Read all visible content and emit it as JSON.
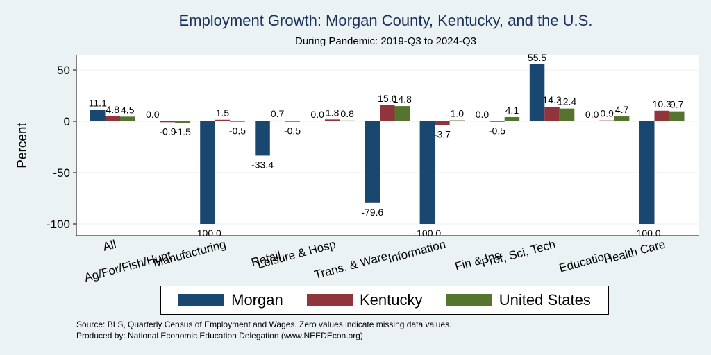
{
  "chart_data": {
    "type": "bar",
    "title": "Employment Growth: Morgan County, Kentucky, and the U.S.",
    "subtitle": "During Pandemic: 2019-Q3 to 2024-Q3",
    "ylabel": "Percent",
    "ylim": [
      -105,
      67
    ],
    "yticks": [
      50,
      0,
      -50,
      -100
    ],
    "grid": true,
    "categories": [
      "All",
      "Ag/For/Fish/Hunt",
      "Manufacturing",
      "Retail",
      "Leisure & Hosp",
      "Trans. & Ware.",
      "Information",
      "Fin & Ins",
      "Prof, Sci, Tech",
      "Education",
      "Health Care"
    ],
    "series": [
      {
        "name": "Morgan",
        "color": "#1a476f",
        "values": [
          11.1,
          0.0,
          -100.0,
          -33.4,
          0.0,
          -79.6,
          -100.0,
          0.0,
          55.5,
          0.0,
          -100.0
        ]
      },
      {
        "name": "Kentucky",
        "color": "#90353b",
        "values": [
          4.8,
          -0.9,
          1.5,
          0.7,
          1.8,
          15.6,
          -3.7,
          -0.5,
          14.2,
          0.9,
          10.3
        ]
      },
      {
        "name": "United States",
        "color": "#55752f",
        "values": [
          4.5,
          -1.5,
          -0.5,
          -0.5,
          0.8,
          14.8,
          1.0,
          4.1,
          12.4,
          4.7,
          9.7
        ]
      }
    ],
    "legend_position": "bottom"
  },
  "footer": {
    "source": "Source: BLS, Quarterly Census of Employment and Wages. Zero values indicate missing data values.",
    "produced_by": "Produced by: National Economic Education Delegation (www.NEEDEcon.org)"
  }
}
